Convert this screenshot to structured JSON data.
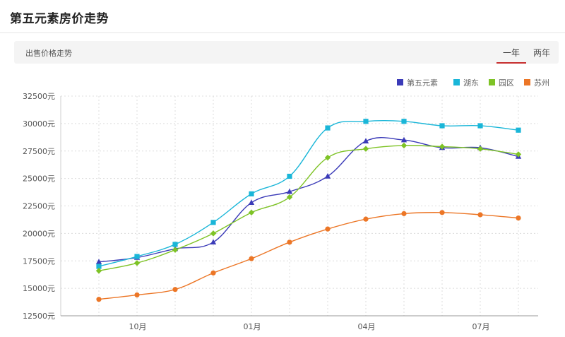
{
  "header": {
    "title": "第五元素房价走势"
  },
  "subheader": {
    "label": "出售价格走势",
    "tabs": [
      "一年",
      "两年"
    ],
    "active_tab": "一年"
  },
  "colors": {
    "active_tab_underline": "#c62f2f"
  },
  "chart_data": {
    "type": "line",
    "title": "",
    "xlabel": "",
    "ylabel": "",
    "ylim": [
      12500,
      32500
    ],
    "y_ticks": [
      12500,
      15000,
      17500,
      20000,
      22500,
      25000,
      27500,
      30000,
      32500
    ],
    "y_tick_suffix": "元",
    "x_tick_labels": [
      "10月",
      "01月",
      "04月",
      "07月"
    ],
    "grid": true,
    "legend_position": "top-right",
    "smooth": true,
    "series": [
      {
        "name": "第五元素",
        "color": "#3b3bb8",
        "marker": "triangle",
        "values": [
          17400,
          17800,
          18600,
          19200,
          22800,
          23800,
          25200,
          28400,
          28500,
          27800,
          27800,
          27000
        ]
      },
      {
        "name": "湖东",
        "color": "#1ab6d8",
        "marker": "square",
        "values": [
          17000,
          17900,
          19000,
          21000,
          23600,
          25200,
          29600,
          30200,
          30200,
          29800,
          29800,
          29400
        ]
      },
      {
        "name": "园区",
        "color": "#7ec326",
        "marker": "diamond",
        "values": [
          16600,
          17300,
          18500,
          20000,
          21900,
          23300,
          26900,
          27700,
          28000,
          27900,
          27700,
          27200
        ]
      },
      {
        "name": "苏州",
        "color": "#ec7626",
        "marker": "circle",
        "values": [
          14000,
          14400,
          14900,
          16400,
          17700,
          19200,
          20400,
          21300,
          21800,
          21900,
          21700,
          21400
        ]
      }
    ]
  }
}
